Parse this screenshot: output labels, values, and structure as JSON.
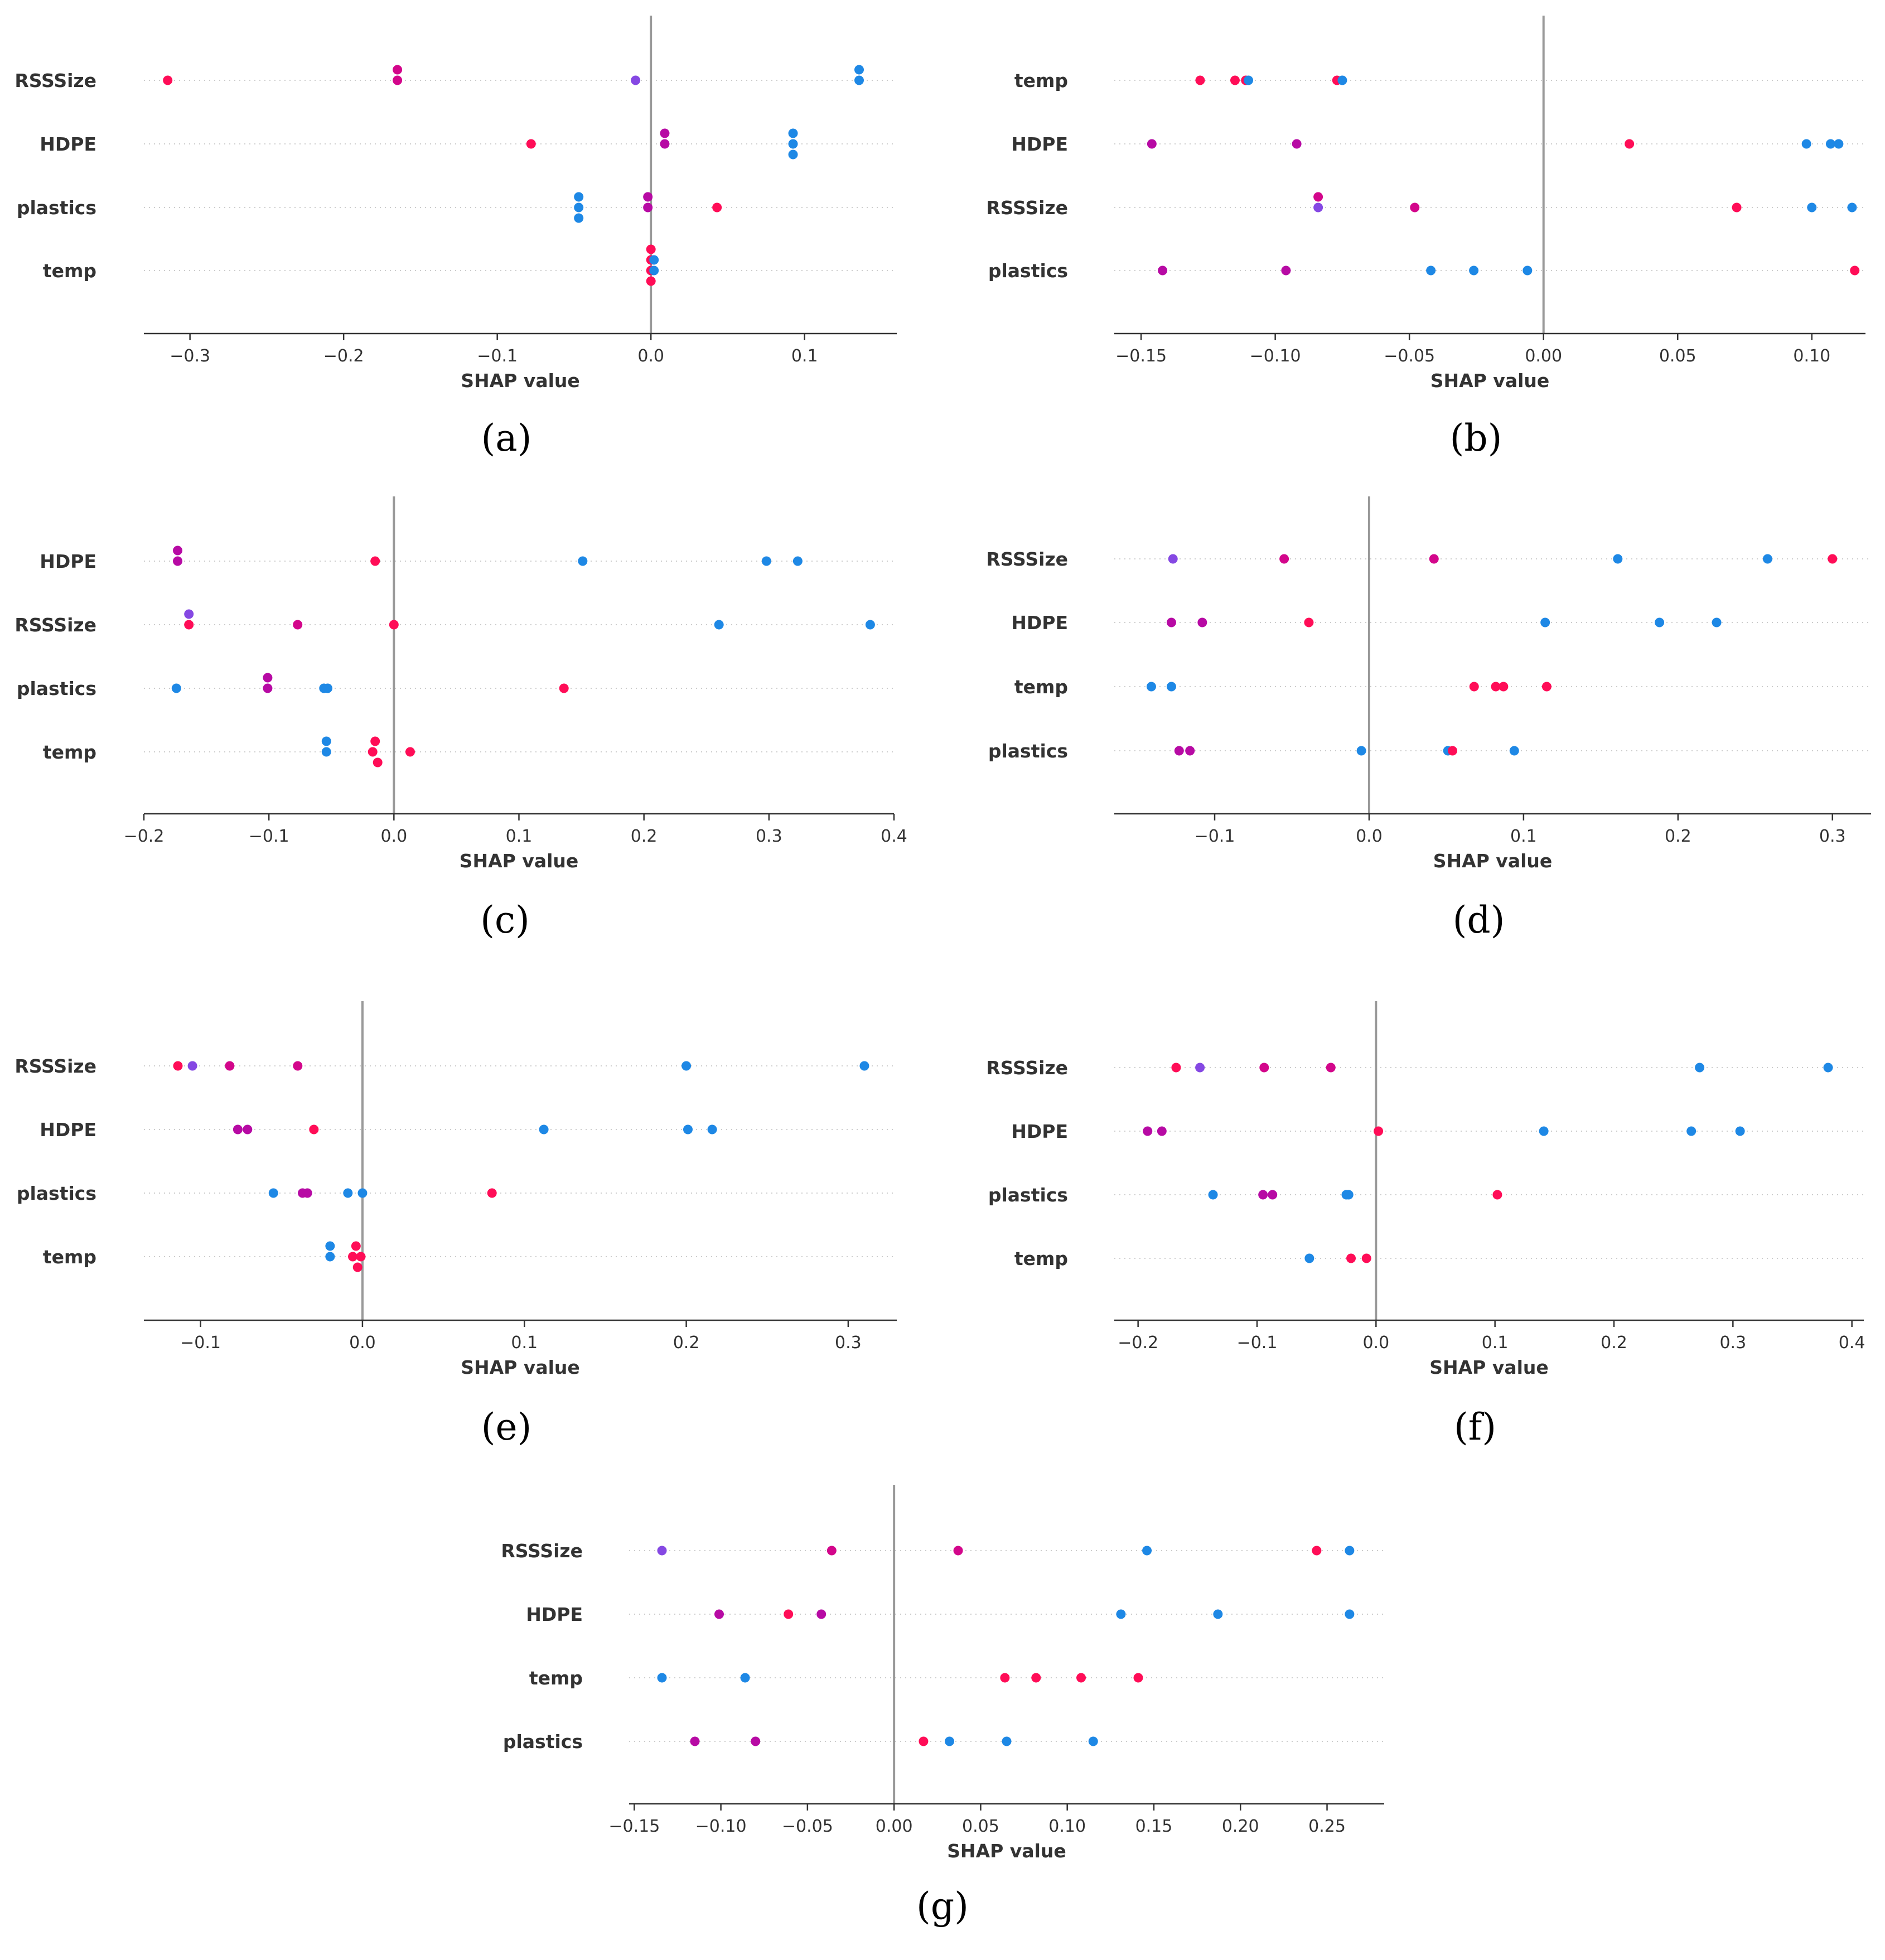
{
  "chart_data": [
    {
      "panel_label": "(a)",
      "type": "scatter",
      "xlabel": "SHAP value",
      "xlim": [
        -0.33,
        0.16
      ],
      "xticks": [
        -0.3,
        -0.2,
        -0.1,
        0.0,
        0.1
      ],
      "tick_labels": [
        "−0.3",
        "−0.2",
        "−0.1",
        "0.0",
        "0.1"
      ],
      "features": [
        "RSSSize",
        "HDPE",
        "plastics",
        "temp"
      ],
      "points": [
        {
          "f": 0,
          "x": -0.3145,
          "c": "#ff0d57"
        },
        {
          "f": 0,
          "x": -0.165,
          "c": "#d3068b"
        },
        {
          "f": 0,
          "x": -0.165,
          "c": "#d3068b"
        },
        {
          "f": 0,
          "x": -0.01,
          "c": "#8548e3"
        },
        {
          "f": 0,
          "x": 0.1355,
          "c": "#1e88e5"
        },
        {
          "f": 0,
          "x": 0.1355,
          "c": "#1e88e5"
        },
        {
          "f": 1,
          "x": -0.078,
          "c": "#ff0d57"
        },
        {
          "f": 1,
          "x": 0.009,
          "c": "#b70aa4"
        },
        {
          "f": 1,
          "x": 0.009,
          "c": "#b70aa4"
        },
        {
          "f": 1,
          "x": 0.0925,
          "c": "#1e88e5"
        },
        {
          "f": 1,
          "x": 0.0925,
          "c": "#1e88e5"
        },
        {
          "f": 1,
          "x": 0.0925,
          "c": "#1e88e5"
        },
        {
          "f": 2,
          "x": -0.047,
          "c": "#1e88e5"
        },
        {
          "f": 2,
          "x": -0.047,
          "c": "#1e88e5"
        },
        {
          "f": 2,
          "x": -0.047,
          "c": "#1e88e5"
        },
        {
          "f": 2,
          "x": -0.002,
          "c": "#b70aa4"
        },
        {
          "f": 2,
          "x": -0.002,
          "c": "#b70aa4"
        },
        {
          "f": 2,
          "x": 0.043,
          "c": "#ff0d57"
        },
        {
          "f": 3,
          "x": 0.0,
          "c": "#ff0d57"
        },
        {
          "f": 3,
          "x": 0.0,
          "c": "#ff0d57"
        },
        {
          "f": 3,
          "x": 0.0,
          "c": "#ff0d57"
        },
        {
          "f": 3,
          "x": 0.0,
          "c": "#ff0d57"
        },
        {
          "f": 3,
          "x": 0.002,
          "c": "#1e88e5"
        },
        {
          "f": 3,
          "x": 0.002,
          "c": "#1e88e5"
        }
      ]
    },
    {
      "panel_label": "(b)",
      "type": "scatter",
      "xlabel": "SHAP value",
      "xlim": [
        -0.16,
        0.12
      ],
      "xticks": [
        -0.15,
        -0.1,
        -0.05,
        0.0,
        0.05,
        0.1
      ],
      "tick_labels": [
        "−0.15",
        "−0.10",
        "−0.05",
        "0.00",
        "0.05",
        "0.10"
      ],
      "features": [
        "temp",
        "HDPE",
        "RSSSize",
        "plastics"
      ],
      "points": [
        {
          "f": 0,
          "x": -0.128,
          "c": "#ff0d57"
        },
        {
          "f": 0,
          "x": -0.115,
          "c": "#ff0d57"
        },
        {
          "f": 0,
          "x": -0.111,
          "c": "#ff0d57"
        },
        {
          "f": 0,
          "x": -0.11,
          "c": "#1e88e5"
        },
        {
          "f": 0,
          "x": -0.077,
          "c": "#ff0d57"
        },
        {
          "f": 0,
          "x": -0.075,
          "c": "#1e88e5"
        },
        {
          "f": 1,
          "x": -0.146,
          "c": "#b70aa4"
        },
        {
          "f": 1,
          "x": -0.092,
          "c": "#b70aa4"
        },
        {
          "f": 1,
          "x": 0.032,
          "c": "#ff0d57"
        },
        {
          "f": 1,
          "x": 0.098,
          "c": "#1e88e5"
        },
        {
          "f": 1,
          "x": 0.107,
          "c": "#1e88e5"
        },
        {
          "f": 1,
          "x": 0.11,
          "c": "#1e88e5"
        },
        {
          "f": 2,
          "x": -0.084,
          "c": "#8548e3"
        },
        {
          "f": 2,
          "x": -0.084,
          "c": "#d3068b"
        },
        {
          "f": 2,
          "x": -0.048,
          "c": "#d3068b"
        },
        {
          "f": 2,
          "x": 0.072,
          "c": "#ff0d57"
        },
        {
          "f": 2,
          "x": 0.1,
          "c": "#1e88e5"
        },
        {
          "f": 2,
          "x": 0.115,
          "c": "#1e88e5"
        },
        {
          "f": 3,
          "x": -0.142,
          "c": "#b70aa4"
        },
        {
          "f": 3,
          "x": -0.096,
          "c": "#b70aa4"
        },
        {
          "f": 3,
          "x": -0.042,
          "c": "#1e88e5"
        },
        {
          "f": 3,
          "x": -0.026,
          "c": "#1e88e5"
        },
        {
          "f": 3,
          "x": -0.006,
          "c": "#1e88e5"
        },
        {
          "f": 3,
          "x": 0.116,
          "c": "#ff0d57"
        }
      ]
    },
    {
      "panel_label": "(c)",
      "type": "scatter",
      "xlabel": "SHAP value",
      "xlim": [
        -0.2,
        0.4
      ],
      "xticks": [
        -0.2,
        -0.1,
        0.0,
        0.1,
        0.2,
        0.3,
        0.4
      ],
      "tick_labels": [
        "−0.2",
        "−0.1",
        "0.0",
        "0.1",
        "0.2",
        "0.3",
        "0.4"
      ],
      "features": [
        "HDPE",
        "RSSSize",
        "plastics",
        "temp"
      ],
      "points": [
        {
          "f": 0,
          "x": -0.173,
          "c": "#b70aa4"
        },
        {
          "f": 0,
          "x": -0.173,
          "c": "#b70aa4"
        },
        {
          "f": 0,
          "x": -0.015,
          "c": "#ff0d57"
        },
        {
          "f": 0,
          "x": 0.151,
          "c": "#1e88e5"
        },
        {
          "f": 0,
          "x": 0.298,
          "c": "#1e88e5"
        },
        {
          "f": 0,
          "x": 0.323,
          "c": "#1e88e5"
        },
        {
          "f": 1,
          "x": -0.164,
          "c": "#ff0d57"
        },
        {
          "f": 1,
          "x": -0.164,
          "c": "#8548e3"
        },
        {
          "f": 1,
          "x": -0.077,
          "c": "#d3068b"
        },
        {
          "f": 1,
          "x": 0.0,
          "c": "#ff0d57"
        },
        {
          "f": 1,
          "x": 0.26,
          "c": "#1e88e5"
        },
        {
          "f": 1,
          "x": 0.381,
          "c": "#1e88e5"
        },
        {
          "f": 2,
          "x": -0.174,
          "c": "#1e88e5"
        },
        {
          "f": 2,
          "x": -0.101,
          "c": "#b70aa4"
        },
        {
          "f": 2,
          "x": -0.101,
          "c": "#b70aa4"
        },
        {
          "f": 2,
          "x": -0.056,
          "c": "#1e88e5"
        },
        {
          "f": 2,
          "x": -0.053,
          "c": "#1e88e5"
        },
        {
          "f": 2,
          "x": 0.136,
          "c": "#ff0d57"
        },
        {
          "f": 3,
          "x": -0.054,
          "c": "#1e88e5"
        },
        {
          "f": 3,
          "x": -0.054,
          "c": "#1e88e5"
        },
        {
          "f": 3,
          "x": -0.017,
          "c": "#ff0d57"
        },
        {
          "f": 3,
          "x": -0.015,
          "c": "#ff0d57"
        },
        {
          "f": 3,
          "x": -0.013,
          "c": "#ff0d57"
        },
        {
          "f": 3,
          "x": 0.013,
          "c": "#ff0d57"
        }
      ]
    },
    {
      "panel_label": "(d)",
      "type": "scatter",
      "xlabel": "SHAP value",
      "xlim": [
        -0.165,
        0.325
      ],
      "xticks": [
        -0.1,
        0.0,
        0.1,
        0.2,
        0.3
      ],
      "tick_labels": [
        "−0.1",
        "0.0",
        "0.1",
        "0.2",
        "0.3"
      ],
      "features": [
        "RSSSize",
        "HDPE",
        "temp",
        "plastics"
      ],
      "points": [
        {
          "f": 0,
          "x": -0.127,
          "c": "#8548e3"
        },
        {
          "f": 0,
          "x": -0.055,
          "c": "#d3068b"
        },
        {
          "f": 0,
          "x": 0.042,
          "c": "#d3068b"
        },
        {
          "f": 0,
          "x": 0.161,
          "c": "#1e88e5"
        },
        {
          "f": 0,
          "x": 0.258,
          "c": "#1e88e5"
        },
        {
          "f": 0,
          "x": 0.3,
          "c": "#ff0d57"
        },
        {
          "f": 1,
          "x": -0.128,
          "c": "#b70aa4"
        },
        {
          "f": 1,
          "x": -0.108,
          "c": "#b70aa4"
        },
        {
          "f": 1,
          "x": -0.039,
          "c": "#ff0d57"
        },
        {
          "f": 1,
          "x": 0.114,
          "c": "#1e88e5"
        },
        {
          "f": 1,
          "x": 0.188,
          "c": "#1e88e5"
        },
        {
          "f": 1,
          "x": 0.225,
          "c": "#1e88e5"
        },
        {
          "f": 2,
          "x": -0.141,
          "c": "#1e88e5"
        },
        {
          "f": 2,
          "x": -0.128,
          "c": "#1e88e5"
        },
        {
          "f": 2,
          "x": 0.068,
          "c": "#ff0d57"
        },
        {
          "f": 2,
          "x": 0.082,
          "c": "#ff0d57"
        },
        {
          "f": 2,
          "x": 0.087,
          "c": "#ff0d57"
        },
        {
          "f": 2,
          "x": 0.115,
          "c": "#ff0d57"
        },
        {
          "f": 3,
          "x": -0.123,
          "c": "#b70aa4"
        },
        {
          "f": 3,
          "x": -0.116,
          "c": "#b70aa4"
        },
        {
          "f": 3,
          "x": -0.005,
          "c": "#1e88e5"
        },
        {
          "f": 3,
          "x": 0.051,
          "c": "#1e88e5"
        },
        {
          "f": 3,
          "x": 0.054,
          "c": "#ff0d57"
        },
        {
          "f": 3,
          "x": 0.094,
          "c": "#1e88e5"
        }
      ]
    },
    {
      "panel_label": "(e)",
      "type": "scatter",
      "xlabel": "SHAP value",
      "xlim": [
        -0.135,
        0.33
      ],
      "xticks": [
        -0.1,
        0.0,
        0.1,
        0.2,
        0.3
      ],
      "tick_labels": [
        "−0.1",
        "0.0",
        "0.1",
        "0.2",
        "0.3"
      ],
      "features": [
        "RSSSize",
        "HDPE",
        "plastics",
        "temp"
      ],
      "points": [
        {
          "f": 0,
          "x": -0.114,
          "c": "#ff0d57"
        },
        {
          "f": 0,
          "x": -0.105,
          "c": "#8548e3"
        },
        {
          "f": 0,
          "x": -0.082,
          "c": "#d3068b"
        },
        {
          "f": 0,
          "x": -0.04,
          "c": "#d3068b"
        },
        {
          "f": 0,
          "x": 0.2,
          "c": "#1e88e5"
        },
        {
          "f": 0,
          "x": 0.31,
          "c": "#1e88e5"
        },
        {
          "f": 1,
          "x": -0.077,
          "c": "#b70aa4"
        },
        {
          "f": 1,
          "x": -0.071,
          "c": "#b70aa4"
        },
        {
          "f": 1,
          "x": -0.03,
          "c": "#ff0d57"
        },
        {
          "f": 1,
          "x": 0.112,
          "c": "#1e88e5"
        },
        {
          "f": 1,
          "x": 0.201,
          "c": "#1e88e5"
        },
        {
          "f": 1,
          "x": 0.216,
          "c": "#1e88e5"
        },
        {
          "f": 2,
          "x": -0.055,
          "c": "#1e88e5"
        },
        {
          "f": 2,
          "x": -0.037,
          "c": "#b70aa4"
        },
        {
          "f": 2,
          "x": -0.034,
          "c": "#b70aa4"
        },
        {
          "f": 2,
          "x": -0.009,
          "c": "#1e88e5"
        },
        {
          "f": 2,
          "x": 0.0,
          "c": "#1e88e5"
        },
        {
          "f": 2,
          "x": 0.08,
          "c": "#ff0d57"
        },
        {
          "f": 3,
          "x": -0.02,
          "c": "#1e88e5"
        },
        {
          "f": 3,
          "x": -0.02,
          "c": "#1e88e5"
        },
        {
          "f": 3,
          "x": -0.006,
          "c": "#ff0d57"
        },
        {
          "f": 3,
          "x": -0.004,
          "c": "#ff0d57"
        },
        {
          "f": 3,
          "x": -0.003,
          "c": "#ff0d57"
        },
        {
          "f": 3,
          "x": -0.001,
          "c": "#ff0d57"
        }
      ]
    },
    {
      "panel_label": "(f)",
      "type": "scatter",
      "xlabel": "SHAP value",
      "xlim": [
        -0.22,
        0.41
      ],
      "xticks": [
        -0.2,
        -0.1,
        0.0,
        0.1,
        0.2,
        0.3,
        0.4
      ],
      "tick_labels": [
        "−0.2",
        "−0.1",
        "0.0",
        "0.1",
        "0.2",
        "0.3",
        "0.4"
      ],
      "features": [
        "RSSSize",
        "HDPE",
        "plastics",
        "temp"
      ],
      "points": [
        {
          "f": 0,
          "x": -0.168,
          "c": "#ff0d57"
        },
        {
          "f": 0,
          "x": -0.148,
          "c": "#8548e3"
        },
        {
          "f": 0,
          "x": -0.094,
          "c": "#d3068b"
        },
        {
          "f": 0,
          "x": -0.038,
          "c": "#d3068b"
        },
        {
          "f": 0,
          "x": 0.272,
          "c": "#1e88e5"
        },
        {
          "f": 0,
          "x": 0.38,
          "c": "#1e88e5"
        },
        {
          "f": 1,
          "x": -0.192,
          "c": "#b70aa4"
        },
        {
          "f": 1,
          "x": -0.18,
          "c": "#b70aa4"
        },
        {
          "f": 1,
          "x": 0.002,
          "c": "#ff0d57"
        },
        {
          "f": 1,
          "x": 0.141,
          "c": "#1e88e5"
        },
        {
          "f": 1,
          "x": 0.265,
          "c": "#1e88e5"
        },
        {
          "f": 1,
          "x": 0.306,
          "c": "#1e88e5"
        },
        {
          "f": 2,
          "x": -0.137,
          "c": "#1e88e5"
        },
        {
          "f": 2,
          "x": -0.095,
          "c": "#b70aa4"
        },
        {
          "f": 2,
          "x": -0.087,
          "c": "#b70aa4"
        },
        {
          "f": 2,
          "x": -0.025,
          "c": "#1e88e5"
        },
        {
          "f": 2,
          "x": -0.023,
          "c": "#1e88e5"
        },
        {
          "f": 2,
          "x": 0.102,
          "c": "#ff0d57"
        },
        {
          "f": 3,
          "x": -0.056,
          "c": "#1e88e5"
        },
        {
          "f": 3,
          "x": -0.021,
          "c": "#ff0d57"
        },
        {
          "f": 3,
          "x": -0.008,
          "c": "#ff0d57"
        }
      ]
    },
    {
      "panel_label": "(g)",
      "type": "scatter",
      "xlabel": "SHAP value",
      "xlim": [
        -0.153,
        0.283
      ],
      "xticks": [
        -0.15,
        -0.1,
        -0.05,
        0.0,
        0.05,
        0.1,
        0.15,
        0.2,
        0.25
      ],
      "tick_labels": [
        "−0.15",
        "−0.10",
        "−0.05",
        "0.00",
        "0.05",
        "0.10",
        "0.15",
        "0.20",
        "0.25"
      ],
      "features": [
        "RSSSize",
        "HDPE",
        "temp",
        "plastics"
      ],
      "points": [
        {
          "f": 0,
          "x": -0.134,
          "c": "#8548e3"
        },
        {
          "f": 0,
          "x": -0.036,
          "c": "#d3068b"
        },
        {
          "f": 0,
          "x": 0.037,
          "c": "#d3068b"
        },
        {
          "f": 0,
          "x": 0.146,
          "c": "#1e88e5"
        },
        {
          "f": 0,
          "x": 0.244,
          "c": "#ff0d57"
        },
        {
          "f": 0,
          "x": 0.263,
          "c": "#1e88e5"
        },
        {
          "f": 1,
          "x": -0.101,
          "c": "#b70aa4"
        },
        {
          "f": 1,
          "x": -0.061,
          "c": "#ff0d57"
        },
        {
          "f": 1,
          "x": -0.042,
          "c": "#b70aa4"
        },
        {
          "f": 1,
          "x": 0.131,
          "c": "#1e88e5"
        },
        {
          "f": 1,
          "x": 0.187,
          "c": "#1e88e5"
        },
        {
          "f": 1,
          "x": 0.263,
          "c": "#1e88e5"
        },
        {
          "f": 2,
          "x": -0.134,
          "c": "#1e88e5"
        },
        {
          "f": 2,
          "x": -0.086,
          "c": "#1e88e5"
        },
        {
          "f": 2,
          "x": 0.064,
          "c": "#ff0d57"
        },
        {
          "f": 2,
          "x": 0.082,
          "c": "#ff0d57"
        },
        {
          "f": 2,
          "x": 0.108,
          "c": "#ff0d57"
        },
        {
          "f": 2,
          "x": 0.141,
          "c": "#ff0d57"
        },
        {
          "f": 3,
          "x": -0.115,
          "c": "#b70aa4"
        },
        {
          "f": 3,
          "x": -0.08,
          "c": "#b70aa4"
        },
        {
          "f": 3,
          "x": 0.017,
          "c": "#ff0d57"
        },
        {
          "f": 3,
          "x": 0.032,
          "c": "#1e88e5"
        },
        {
          "f": 3,
          "x": 0.065,
          "c": "#1e88e5"
        },
        {
          "f": 3,
          "x": 0.115,
          "c": "#1e88e5"
        }
      ]
    }
  ]
}
